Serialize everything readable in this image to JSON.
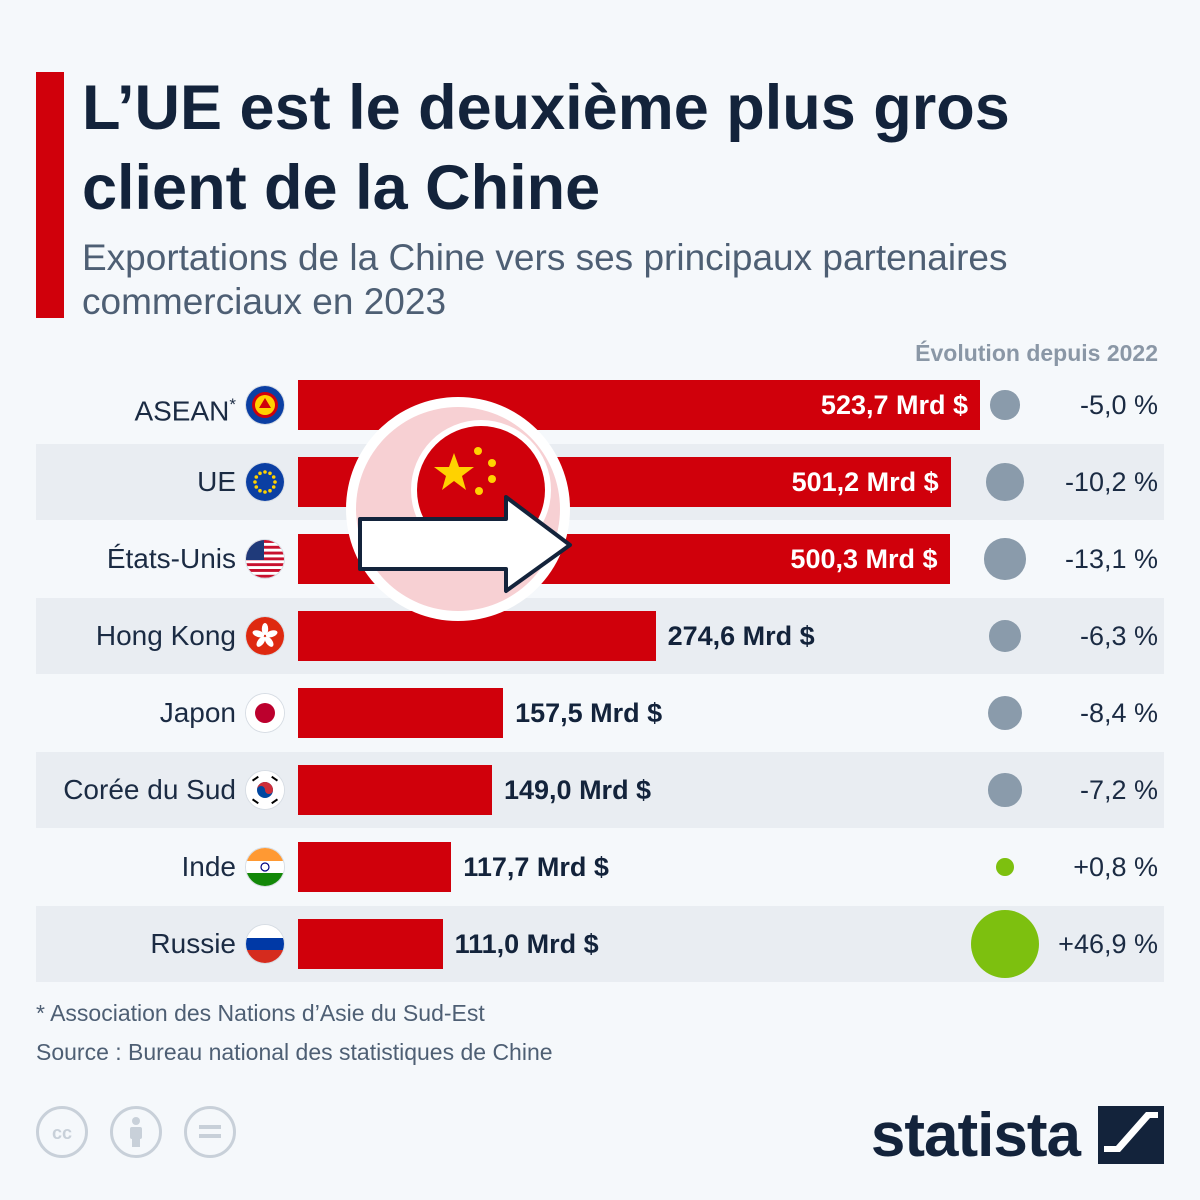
{
  "header": {
    "title": "L’UE est le deuxième plus gros client de la Chine",
    "subtitle": "Exportations de la Chine vers ses principaux partenaires commerciaux en 2023",
    "evolution_label": "Évolution depuis 2022"
  },
  "chart_data": {
    "type": "bar",
    "orientation": "horizontal",
    "categories": [
      "ASEAN",
      "UE",
      "États-Unis",
      "Hong Kong",
      "Japon",
      "Corée du Sud",
      "Inde",
      "Russie"
    ],
    "values": [
      523.7,
      501.2,
      500.3,
      274.6,
      157.5,
      149.0,
      117.7,
      111.0
    ],
    "value_labels": [
      "523,7 Mrd $",
      "501,2 Mrd $",
      "500,3 Mrd $",
      "274,6 Mrd $",
      "157,5 Mrd $",
      "149,0 Mrd $",
      "117,7 Mrd $",
      "111,0 Mrd $"
    ],
    "change_since_2022": [
      -5.0,
      -10.2,
      -13.1,
      -6.3,
      -8.4,
      -7.2,
      0.8,
      46.9
    ],
    "change_labels": [
      "-5,0 %",
      "-10,2 %",
      "-13,1 %",
      "-6,3 %",
      "-8,4 %",
      "-7,2 %",
      "+0,8 %",
      "+46,9 %"
    ],
    "category_footnote_marks": [
      "*",
      "",
      "",
      "",
      "",
      "",
      "",
      ""
    ],
    "flag_icons": [
      "asean-flag-icon",
      "eu-flag-icon",
      "usa-flag-icon",
      "hong-kong-flag-icon",
      "japan-flag-icon",
      "south-korea-flag-icon",
      "india-flag-icon",
      "russia-flag-icon"
    ],
    "colors": {
      "bar": "#d0000b",
      "negative_change": "#8a9bab",
      "positive_change": "#7dc00f"
    }
  },
  "footer": {
    "note": "* Association des Nations d’Asie du Sud-Est",
    "source": "Source : Bureau national des statistiques de Chine",
    "brand": "statista",
    "license_icons": [
      "cc-icon",
      "attribution-icon",
      "no-derivatives-icon"
    ]
  }
}
